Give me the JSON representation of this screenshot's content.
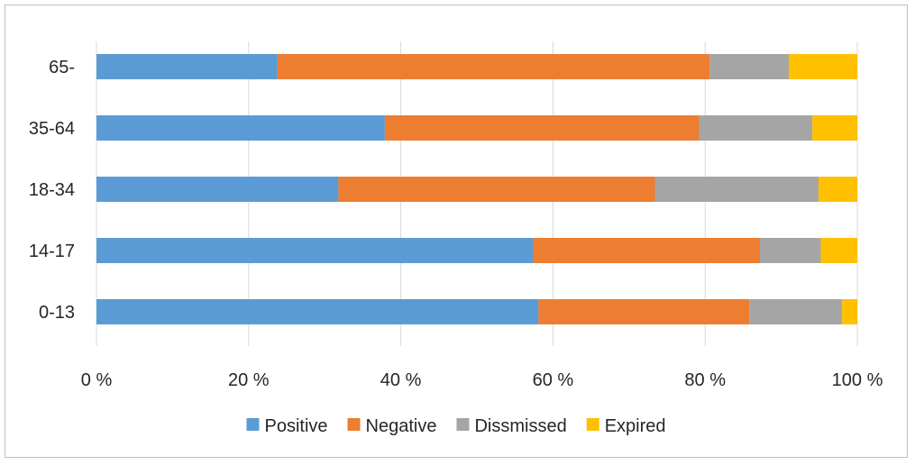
{
  "chart_data": {
    "type": "bar",
    "orientation": "horizontal",
    "stacked": "percent",
    "categories": [
      "65-",
      "35-64",
      "18-34",
      "14-17",
      "0-13"
    ],
    "series": [
      {
        "name": "Positive",
        "color": "#5b9bd5",
        "values": [
          23.8,
          37.9,
          31.8,
          57.4,
          58.1
        ]
      },
      {
        "name": "Negative",
        "color": "#ed7d31",
        "values": [
          56.8,
          41.3,
          41.6,
          29.8,
          27.7
        ]
      },
      {
        "name": "Dissmissed",
        "color": "#a5a5a5",
        "values": [
          10.4,
          14.9,
          21.5,
          8.0,
          12.2
        ]
      },
      {
        "name": "Expired",
        "color": "#ffc000",
        "values": [
          9.0,
          5.9,
          5.1,
          4.8,
          2.0
        ]
      }
    ],
    "xlim": [
      0,
      100
    ],
    "xticks": [
      0,
      20,
      40,
      60,
      80,
      100
    ],
    "xtick_labels": [
      "0 %",
      "20 %",
      "40 %",
      "60 %",
      "80 %",
      "100 %"
    ],
    "grid": true,
    "legend": "bottom"
  }
}
